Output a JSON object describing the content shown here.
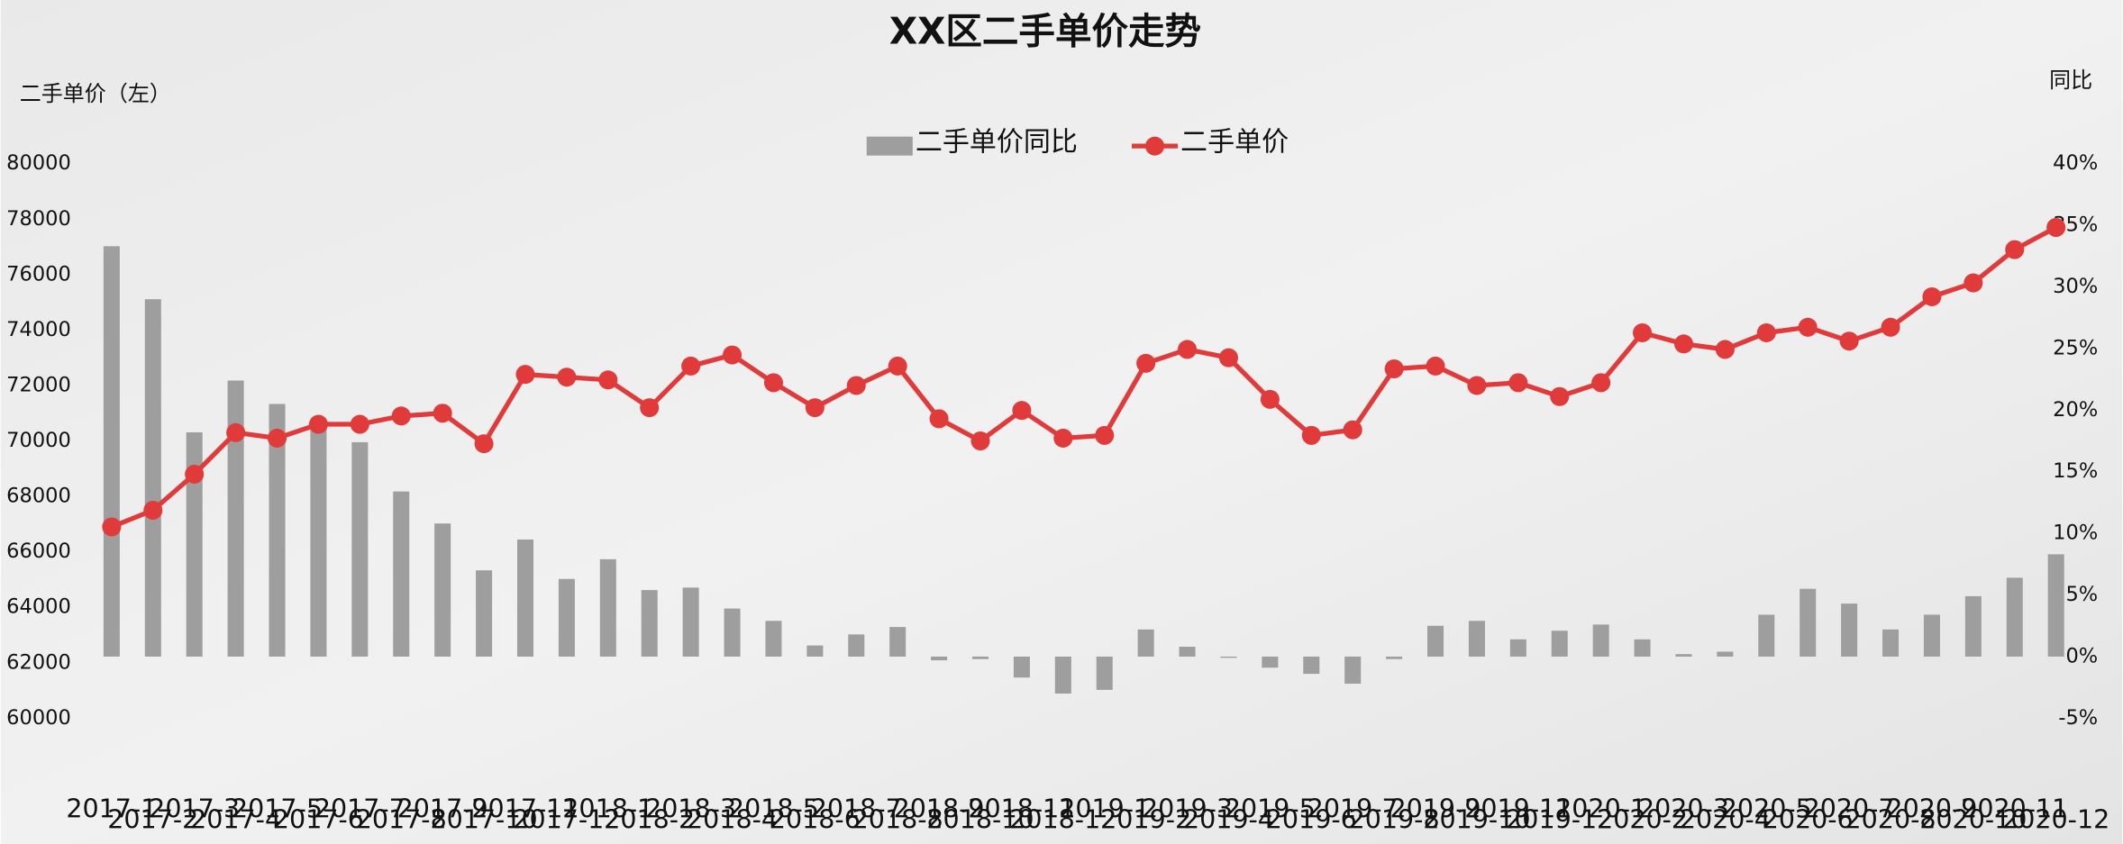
{
  "chart_data": {
    "type": "bar-line",
    "title": "XX区二手单价走势",
    "y_label": "二手单价（左）",
    "y2_label": "同比",
    "categories": [
      "2017-1",
      "2017-2",
      "2017-3",
      "2017-4",
      "2017-5",
      "2017-6",
      "2017-7",
      "2017-8",
      "2017-9",
      "2017-10",
      "2017-11",
      "2017-12",
      "2018-1",
      "2018-2",
      "2018-3",
      "2018-4",
      "2018-5",
      "2018-6",
      "2018-7",
      "2018-8",
      "2018-9",
      "2018-10",
      "2018-11",
      "2018-12",
      "2019-1",
      "2019-2",
      "2019-3",
      "2019-4",
      "2019-5",
      "2019-6",
      "2019-7",
      "2019-8",
      "2019-9",
      "2019-10",
      "2019-11",
      "2019-12",
      "2020-1",
      "2020-2",
      "2020-3",
      "2020-4",
      "2020-5",
      "2020-6",
      "2020-7",
      "2020-8",
      "2020-9",
      "2020-10",
      "2020-11",
      "2020-12"
    ],
    "series": [
      {
        "name": "二手单价同比",
        "type": "bar",
        "axis": "y2",
        "color": "#9e9e9e",
        "values": [
          33.3,
          29.0,
          18.2,
          22.4,
          20.5,
          18.9,
          17.4,
          13.4,
          10.8,
          7.0,
          9.5,
          6.3,
          7.9,
          5.4,
          5.6,
          3.9,
          2.9,
          0.9,
          1.8,
          2.4,
          -0.3,
          -0.2,
          -1.7,
          -3.0,
          -2.7,
          2.2,
          0.8,
          -0.1,
          -0.9,
          -1.4,
          -2.2,
          -0.2,
          2.5,
          2.9,
          1.4,
          2.1,
          2.6,
          1.4,
          0.2,
          0.4,
          3.4,
          5.5,
          4.3,
          2.2,
          3.4,
          4.9,
          6.4,
          8.3
        ]
      },
      {
        "name": "二手单价",
        "type": "line",
        "axis": "y",
        "color": "#e03a3a",
        "values": [
          66900,
          67500,
          68800,
          70300,
          70100,
          70600,
          70600,
          70900,
          71000,
          69900,
          72400,
          72300,
          72200,
          71200,
          72700,
          73100,
          72100,
          71200,
          72000,
          72700,
          70800,
          70000,
          71100,
          70100,
          70200,
          72800,
          73300,
          73000,
          71500,
          70200,
          70400,
          72600,
          72700,
          72000,
          72100,
          71600,
          72100,
          73900,
          73500,
          73300,
          73900,
          74100,
          73600,
          74100,
          75200,
          75700,
          76900,
          77700
        ]
      }
    ],
    "ylim": [
      60000,
      80000
    ],
    "yticks": [
      60000,
      62000,
      64000,
      66000,
      68000,
      70000,
      72000,
      74000,
      76000,
      78000,
      80000
    ],
    "y2lim": [
      -5,
      40
    ],
    "y2ticks": [
      {
        "value": -5,
        "label": "-5%"
      },
      {
        "value": 0,
        "label": "0%"
      },
      {
        "value": 5,
        "label": "5%"
      },
      {
        "value": 10,
        "label": "10%"
      },
      {
        "value": 15,
        "label": "15%"
      },
      {
        "value": 20,
        "label": "20%"
      },
      {
        "value": 25,
        "label": "25%"
      },
      {
        "value": 30,
        "label": "30%"
      },
      {
        "value": 35,
        "label": "35%"
      },
      {
        "value": 40,
        "label": "40%"
      }
    ],
    "legend": "top"
  }
}
